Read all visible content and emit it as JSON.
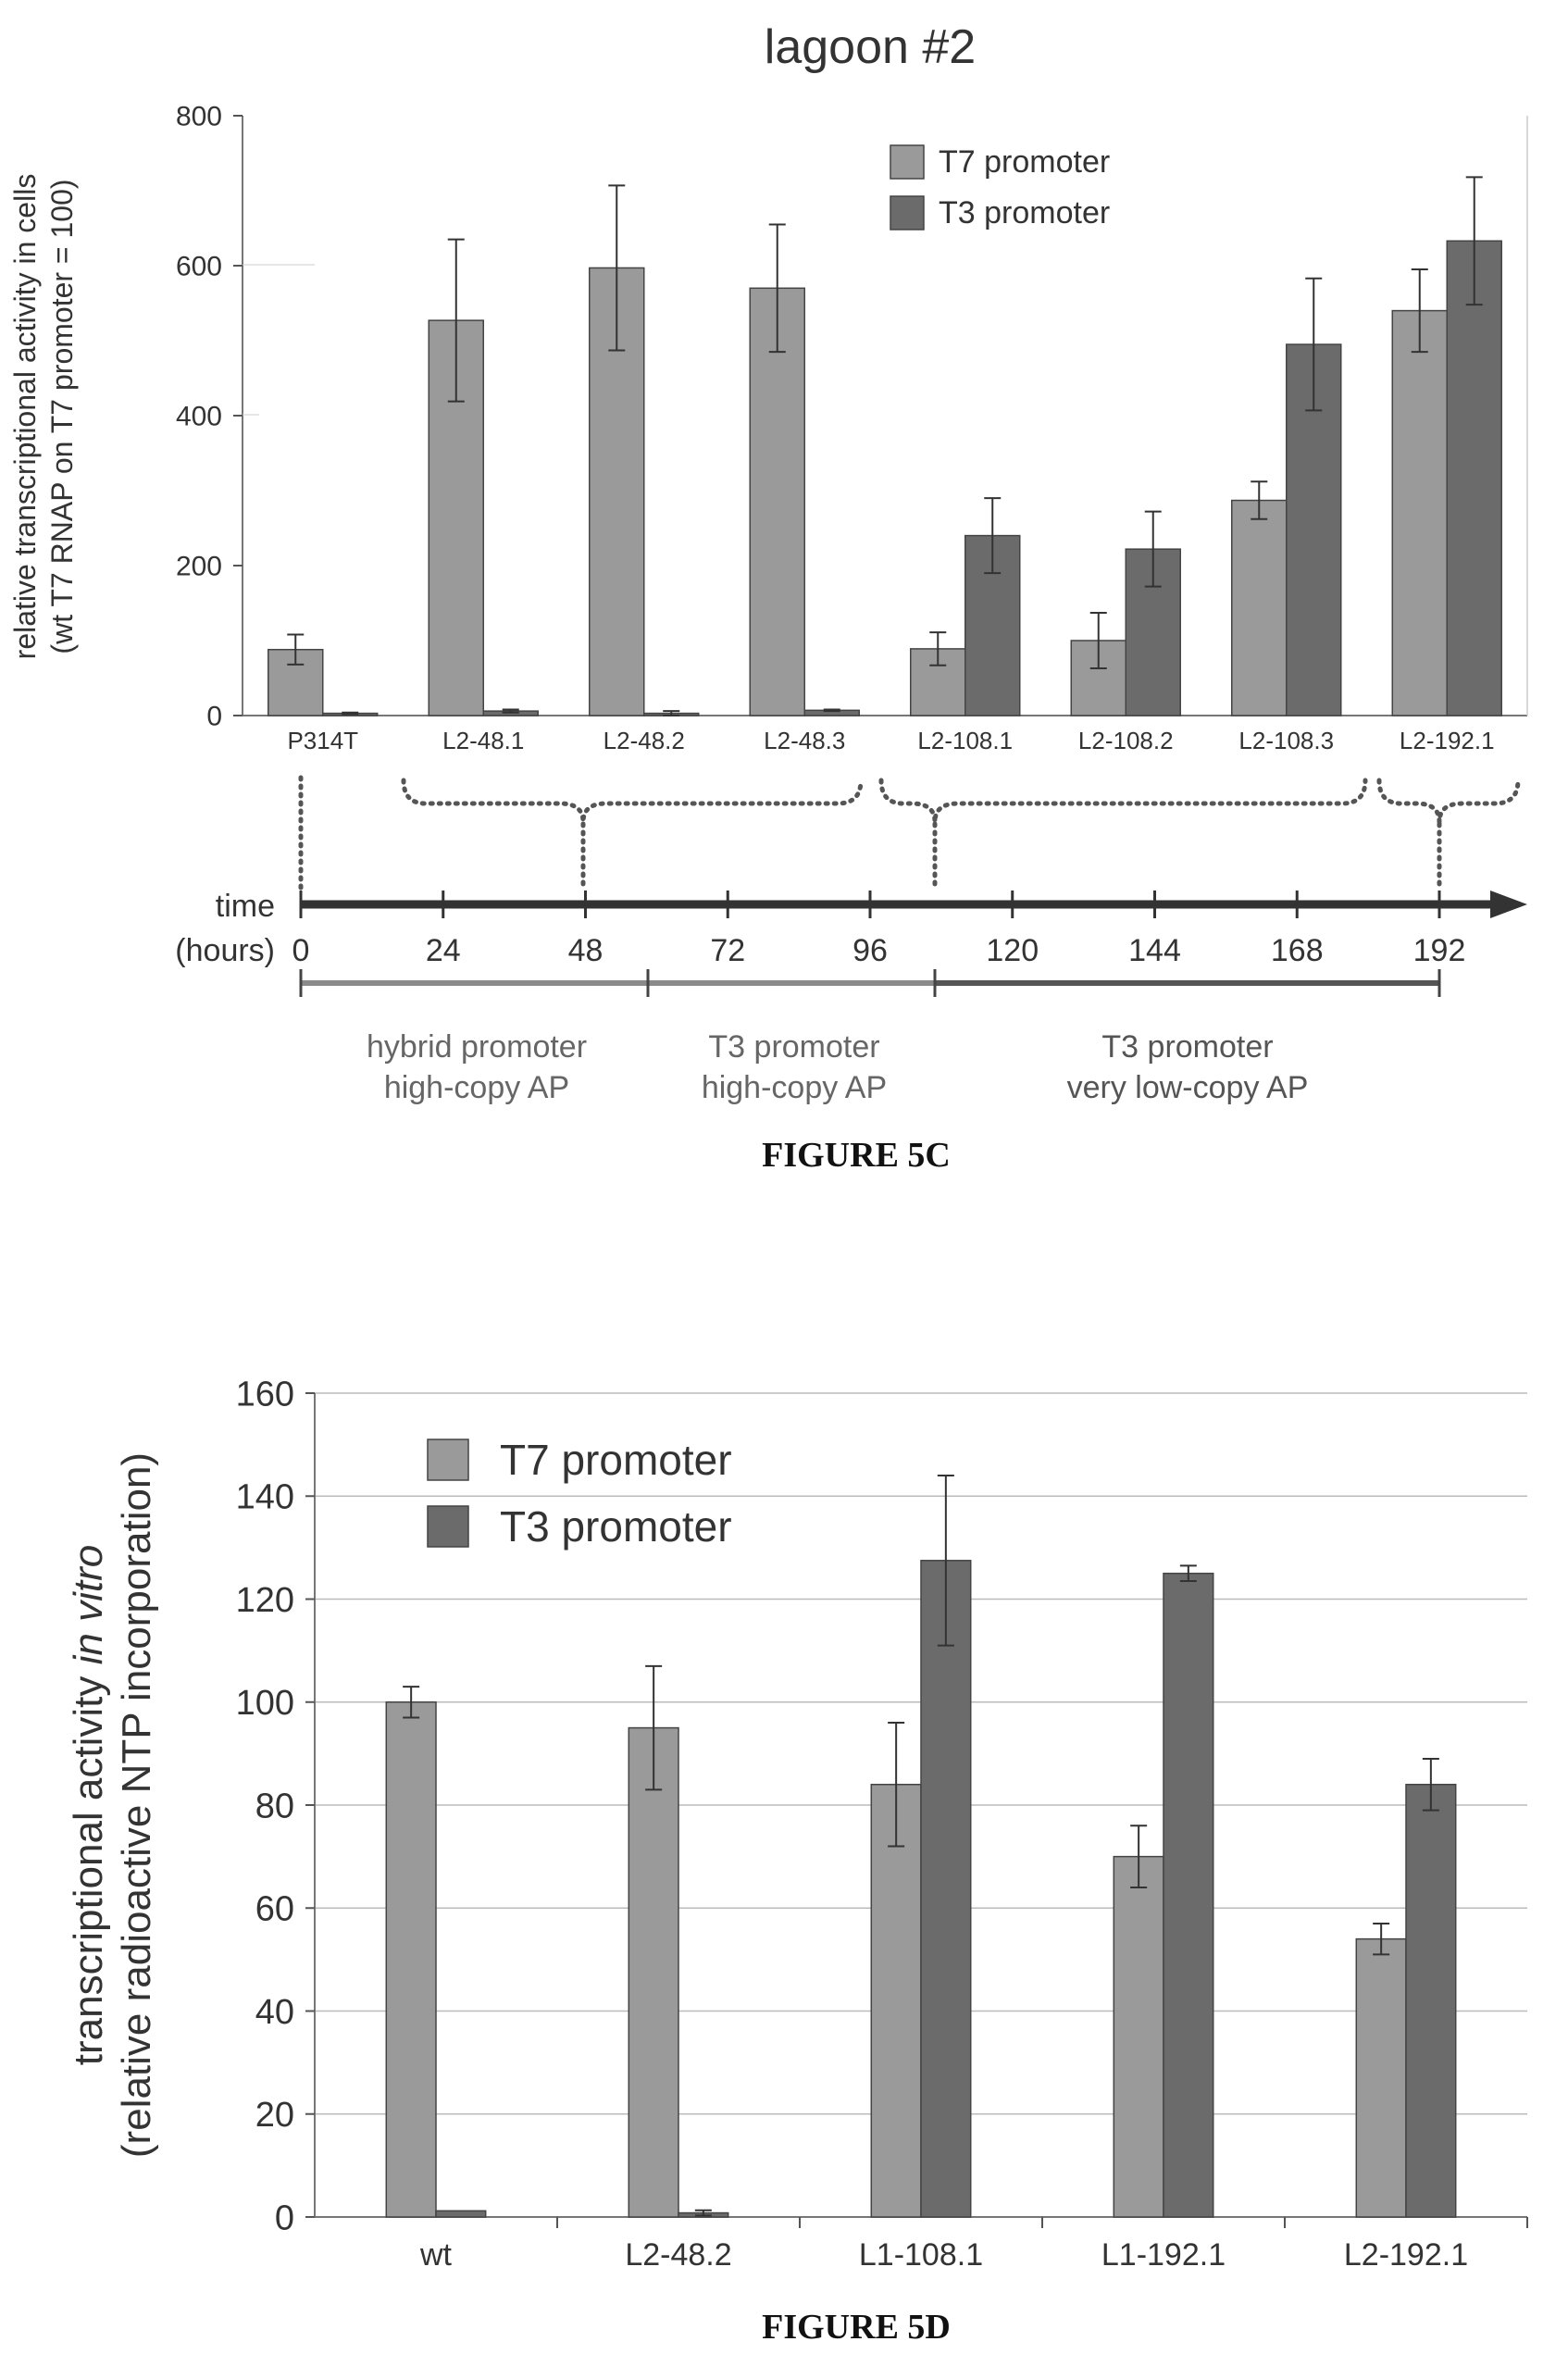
{
  "figure_5c": {
    "caption": "FIGURE 5C",
    "timeline": {
      "time_label": "time",
      "hours_label": "(hours)",
      "ticks": [
        "0",
        "24",
        "48",
        "72",
        "96",
        "120",
        "144",
        "168",
        "192"
      ],
      "phases": [
        {
          "line1": "hybrid promoter",
          "line2": "high-copy AP"
        },
        {
          "line1": "T3 promoter",
          "line2": "high-copy AP"
        },
        {
          "line1": "T3 promoter",
          "line2": "very low-copy AP"
        }
      ]
    }
  },
  "figure_5d": {
    "caption": "FIGURE 5D"
  },
  "colors": {
    "t7": "#9a9a9a",
    "t3": "#6b6b6b",
    "phase_light": "#8a8a8a",
    "phase_dark": "#555555",
    "axis": "#555555",
    "grid": "#bbbbbb"
  },
  "chart_data": [
    {
      "type": "bar",
      "title": "lagoon #2",
      "ylabel_line1": "relative transcriptional activity in cells",
      "ylabel_line2": "(wt T7 RNAP on T7 promoter = 100)",
      "xlabel": "",
      "ylim": [
        0,
        800
      ],
      "yticks": [
        0,
        200,
        400,
        600,
        800
      ],
      "grid": false,
      "legend_position": "top-right",
      "categories": [
        "P314T",
        "L2-48.1",
        "L2-48.2",
        "L2-48.3",
        "L2-108.1",
        "L2-108.2",
        "L2-108.3",
        "L2-192.1"
      ],
      "series": [
        {
          "name": "T7 promoter",
          "values": [
            88,
            527,
            597,
            570,
            89,
            100,
            287,
            540
          ],
          "errors": [
            20,
            108,
            110,
            85,
            22,
            37,
            25,
            55
          ]
        },
        {
          "name": "T3 promoter",
          "values": [
            3,
            6,
            3,
            7,
            240,
            222,
            495,
            633
          ],
          "errors": [
            1,
            2,
            3,
            1,
            50,
            50,
            88,
            85
          ]
        }
      ]
    },
    {
      "type": "bar",
      "title": "",
      "ylabel_line1": "transcriptional activity in vitro",
      "ylabel_line2": "(relative radioactive NTP incorporation)",
      "xlabel": "",
      "ylim": [
        0,
        160
      ],
      "yticks": [
        0,
        20,
        40,
        60,
        80,
        100,
        120,
        140,
        160
      ],
      "grid": true,
      "legend_position": "top-left",
      "categories": [
        "wt",
        "L2-48.2",
        "L1-108.1",
        "L1-192.1",
        "L2-192.1"
      ],
      "series": [
        {
          "name": "T7 promoter",
          "values": [
            100,
            95,
            84,
            70,
            54
          ],
          "errors": [
            3,
            12,
            12,
            6,
            3
          ]
        },
        {
          "name": "T3 promoter",
          "values": [
            1.2,
            0.8,
            127.5,
            125,
            84
          ],
          "errors": [
            0,
            0.5,
            16.5,
            1.5,
            5
          ]
        }
      ]
    }
  ]
}
